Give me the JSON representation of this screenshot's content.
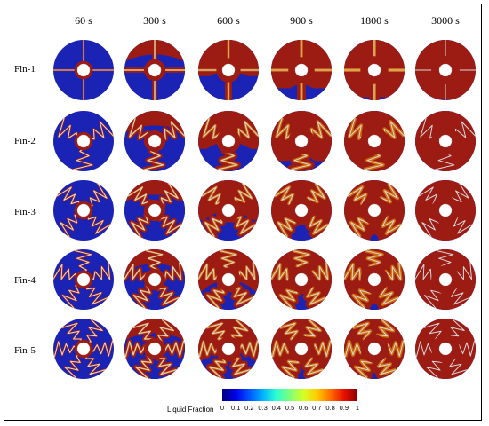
{
  "times": [
    "60 s",
    "300 s",
    "600 s",
    "900 s",
    "1800 s",
    "3000 s"
  ],
  "fins": [
    "Fin-1",
    "Fin-2",
    "Fin-3",
    "Fin-4",
    "Fin-5"
  ],
  "colorbar": {
    "title": "Liquid Fraction",
    "ticks": [
      "0",
      "0.1",
      "0.2",
      "0.3",
      "0.4",
      "0.5",
      "0.6",
      "0.7",
      "0.8",
      "0.9",
      "1"
    ],
    "colors": [
      "#00007f",
      "#0000e8",
      "#0055ff",
      "#00b3ff",
      "#2cffd0",
      "#80ff7a",
      "#d4ff26",
      "#ffcc00",
      "#ff6e00",
      "#e80f00",
      "#8b0000"
    ]
  },
  "colors": {
    "solid": "#1a23b4",
    "liquid": "#9c1c14",
    "fin": "#d8d8d8",
    "interface": "#f0a000"
  }
}
